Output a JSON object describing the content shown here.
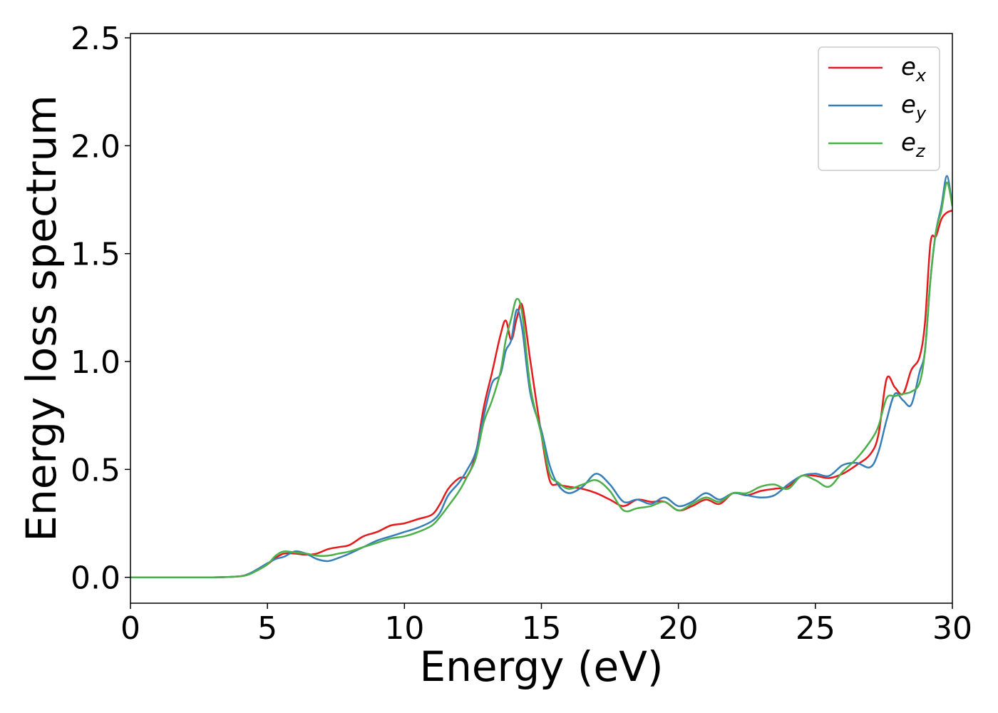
{
  "chart_data": {
    "type": "line",
    "title": "",
    "xlabel": "Energy (eV)",
    "ylabel": "Energy loss spectrum",
    "xlim": [
      0,
      30
    ],
    "ylim": [
      -0.12,
      2.52
    ],
    "xticks": [
      0,
      5,
      10,
      15,
      20,
      25,
      30
    ],
    "xtick_labels": [
      "0",
      "5",
      "10",
      "15",
      "20",
      "25",
      "30"
    ],
    "yticks": [
      0.0,
      0.5,
      1.0,
      1.5,
      2.0,
      2.5
    ],
    "ytick_labels": [
      "0.0",
      "0.5",
      "1.0",
      "1.5",
      "2.0",
      "2.5"
    ],
    "grid": false,
    "legend_position": "top-right",
    "series": [
      {
        "name": "e_x",
        "label_base": "e",
        "label_sub": "x",
        "color": "#e41a1c",
        "x": [
          0,
          3,
          4,
          4.3,
          4.6,
          5,
          5.3,
          5.6,
          6,
          6.4,
          6.8,
          7.2,
          7.6,
          8,
          8.5,
          9,
          9.5,
          10,
          10.5,
          11,
          11.3,
          11.6,
          12,
          12.3,
          12.6,
          12.9,
          13.2,
          13.5,
          13.7,
          13.9,
          14.1,
          14.3,
          14.6,
          15,
          15.3,
          15.6,
          16,
          16.5,
          17,
          17.5,
          18,
          18.5,
          19,
          19.5,
          20,
          20.5,
          21,
          21.5,
          22,
          22.5,
          23,
          23.5,
          24,
          24.5,
          25,
          25.5,
          26,
          26.5,
          27,
          27.3,
          27.6,
          27.9,
          28.2,
          28.5,
          28.8,
          29,
          29.2,
          29.4,
          29.6,
          29.8,
          30
        ],
        "y": [
          0.0,
          0.0,
          0.005,
          0.015,
          0.03,
          0.06,
          0.09,
          0.11,
          0.11,
          0.105,
          0.11,
          0.13,
          0.14,
          0.15,
          0.19,
          0.21,
          0.24,
          0.25,
          0.27,
          0.29,
          0.34,
          0.41,
          0.46,
          0.47,
          0.57,
          0.79,
          0.95,
          1.12,
          1.19,
          1.1,
          1.2,
          1.26,
          1.0,
          0.66,
          0.45,
          0.43,
          0.42,
          0.41,
          0.39,
          0.36,
          0.33,
          0.36,
          0.35,
          0.35,
          0.31,
          0.33,
          0.36,
          0.34,
          0.39,
          0.38,
          0.4,
          0.41,
          0.42,
          0.47,
          0.47,
          0.46,
          0.48,
          0.52,
          0.57,
          0.66,
          0.92,
          0.88,
          0.85,
          0.96,
          1.02,
          1.18,
          1.55,
          1.58,
          1.66,
          1.69,
          1.7
        ]
      },
      {
        "name": "e_y",
        "label_base": "e",
        "label_sub": "y",
        "color": "#377eb8",
        "x": [
          0,
          3,
          4,
          4.3,
          4.6,
          5,
          5.3,
          5.6,
          6,
          6.4,
          6.8,
          7.2,
          7.6,
          8,
          8.5,
          9,
          9.5,
          10,
          10.5,
          11,
          11.3,
          11.6,
          12,
          12.3,
          12.6,
          12.9,
          13.2,
          13.5,
          13.7,
          13.9,
          14.1,
          14.3,
          14.6,
          15,
          15.3,
          15.6,
          16,
          16.5,
          17,
          17.5,
          18,
          18.5,
          19,
          19.5,
          20,
          20.5,
          21,
          21.5,
          22,
          22.5,
          23,
          23.5,
          24,
          24.5,
          25,
          25.5,
          26,
          26.5,
          27,
          27.3,
          27.6,
          27.9,
          28.2,
          28.5,
          28.8,
          29,
          29.2,
          29.4,
          29.6,
          29.8,
          30
        ],
        "y": [
          0.0,
          0.0,
          0.005,
          0.015,
          0.035,
          0.065,
          0.085,
          0.095,
          0.12,
          0.11,
          0.085,
          0.075,
          0.09,
          0.11,
          0.14,
          0.17,
          0.19,
          0.21,
          0.23,
          0.26,
          0.3,
          0.38,
          0.44,
          0.5,
          0.58,
          0.75,
          0.9,
          0.94,
          1.05,
          1.1,
          1.24,
          1.15,
          0.85,
          0.68,
          0.52,
          0.43,
          0.39,
          0.42,
          0.48,
          0.43,
          0.35,
          0.36,
          0.34,
          0.37,
          0.33,
          0.35,
          0.39,
          0.36,
          0.39,
          0.38,
          0.37,
          0.38,
          0.43,
          0.47,
          0.48,
          0.47,
          0.52,
          0.53,
          0.51,
          0.58,
          0.73,
          0.85,
          0.82,
          0.8,
          0.95,
          1.05,
          1.38,
          1.6,
          1.72,
          1.86,
          1.72
        ]
      },
      {
        "name": "e_z",
        "label_base": "e",
        "label_sub": "z",
        "color": "#4daf4a",
        "x": [
          0,
          3,
          4,
          4.3,
          4.6,
          5,
          5.3,
          5.6,
          6,
          6.4,
          6.8,
          7.2,
          7.6,
          8,
          8.5,
          9,
          9.5,
          10,
          10.5,
          11,
          11.3,
          11.6,
          12,
          12.3,
          12.6,
          12.9,
          13.2,
          13.5,
          13.7,
          13.9,
          14.1,
          14.3,
          14.6,
          15,
          15.3,
          15.6,
          16,
          16.5,
          17,
          17.5,
          18,
          18.5,
          19,
          19.5,
          20,
          20.5,
          21,
          21.5,
          22,
          22.5,
          23,
          23.5,
          24,
          24.5,
          25,
          25.5,
          26,
          26.5,
          27,
          27.3,
          27.6,
          27.9,
          28.2,
          28.5,
          28.8,
          29,
          29.2,
          29.4,
          29.6,
          29.8,
          30
        ],
        "y": [
          0.0,
          0.0,
          0.005,
          0.012,
          0.03,
          0.06,
          0.1,
          0.12,
          0.115,
          0.11,
          0.1,
          0.1,
          0.11,
          0.12,
          0.14,
          0.16,
          0.18,
          0.19,
          0.21,
          0.24,
          0.28,
          0.33,
          0.4,
          0.47,
          0.55,
          0.72,
          0.82,
          0.95,
          1.1,
          1.2,
          1.29,
          1.22,
          0.88,
          0.66,
          0.48,
          0.44,
          0.41,
          0.43,
          0.45,
          0.4,
          0.31,
          0.32,
          0.33,
          0.35,
          0.31,
          0.34,
          0.37,
          0.35,
          0.39,
          0.39,
          0.42,
          0.43,
          0.41,
          0.47,
          0.45,
          0.42,
          0.49,
          0.55,
          0.63,
          0.7,
          0.83,
          0.84,
          0.85,
          0.86,
          0.9,
          1.05,
          1.38,
          1.6,
          1.7,
          1.83,
          1.72
        ]
      }
    ]
  }
}
